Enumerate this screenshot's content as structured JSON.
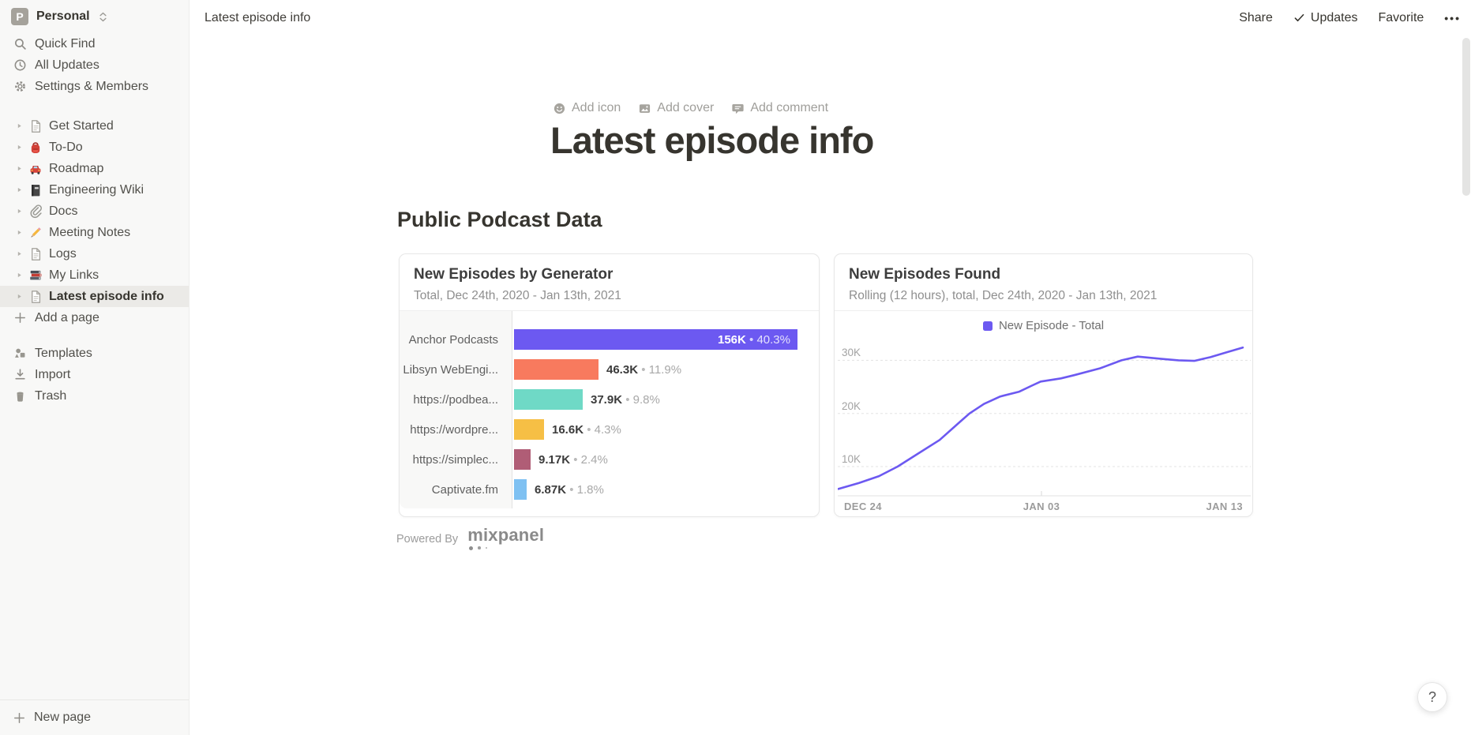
{
  "workspace": {
    "initial": "P",
    "name": "Personal"
  },
  "sidebar": {
    "top_items": [
      {
        "label": "Quick Find",
        "icon": "search-icon"
      },
      {
        "label": "All Updates",
        "icon": "clock-icon"
      },
      {
        "label": "Settings & Members",
        "icon": "gear-icon"
      }
    ],
    "pages": [
      {
        "label": "Get Started",
        "icon": "page-icon",
        "selected": false
      },
      {
        "label": "To-Do",
        "icon": "backpack-icon",
        "selected": false
      },
      {
        "label": "Roadmap",
        "icon": "car-icon",
        "selected": false
      },
      {
        "label": "Engineering Wiki",
        "icon": "notebook-icon",
        "selected": false
      },
      {
        "label": "Docs",
        "icon": "paperclip-icon",
        "selected": false
      },
      {
        "label": "Meeting Notes",
        "icon": "pencil-icon",
        "selected": false
      },
      {
        "label": "Logs",
        "icon": "page-icon",
        "selected": false
      },
      {
        "label": "My Links",
        "icon": "books-icon",
        "selected": false
      },
      {
        "label": "Latest episode info",
        "icon": "page-icon",
        "selected": true
      }
    ],
    "add_page_label": "Add a page",
    "bottom_items": [
      {
        "label": "Templates",
        "icon": "templates-icon"
      },
      {
        "label": "Import",
        "icon": "import-icon"
      },
      {
        "label": "Trash",
        "icon": "trash-icon"
      }
    ],
    "new_page_label": "New page"
  },
  "topbar": {
    "breadcrumb": "Latest episode info",
    "share_label": "Share",
    "updates_label": "Updates",
    "favorite_label": "Favorite",
    "more_label": "•••"
  },
  "page": {
    "controls": [
      {
        "label": "Add icon",
        "icon": "smiley-icon"
      },
      {
        "label": "Add cover",
        "icon": "image-icon"
      },
      {
        "label": "Add comment",
        "icon": "comment-icon"
      }
    ],
    "title": "Latest episode info",
    "section_heading": "Public Podcast Data",
    "powered_by_label": "Powered By",
    "powered_by_brand": "mixpanel"
  },
  "help_label": "?",
  "accent_color": "#6c59f1",
  "chart_data": [
    {
      "type": "bar",
      "orientation": "horizontal",
      "title": "New Episodes by Generator",
      "subtitle": "Total, Dec 24th, 2020 - Jan 13th, 2021",
      "categories": [
        "Anchor Podcasts",
        "Libsyn WebEngi...",
        "https://podbea...",
        "https://wordpre...",
        "https://simplec...",
        "Captivate.fm"
      ],
      "values": [
        156000,
        46300,
        37900,
        16600,
        9170,
        6870
      ],
      "value_labels": [
        "156K",
        "46.3K",
        "37.9K",
        "16.6K",
        "9.17K",
        "6.87K"
      ],
      "percent_labels": [
        "40.3%",
        "11.9%",
        "9.8%",
        "4.3%",
        "2.4%",
        "1.8%"
      ],
      "bar_colors": [
        "#6c59f1",
        "#f87a5e",
        "#6fd9c6",
        "#f6bf45",
        "#b05d76",
        "#7fc1f2"
      ],
      "scale_max": 156000,
      "grid": false,
      "legend_position": "none"
    },
    {
      "type": "line",
      "title": "New Episodes Found",
      "subtitle": "Rolling (12 hours), total, Dec 24th, 2020 - Jan 13th, 2021",
      "legend": [
        {
          "label": "New Episode - Total",
          "color": "#6c59f1"
        }
      ],
      "legend_position": "top-center",
      "line_color": "#6c59f1",
      "x_ticks": [
        "DEC 24",
        "JAN 03",
        "JAN 13"
      ],
      "y_gridlines": [
        10000,
        20000,
        30000
      ],
      "y_tick_labels": [
        "10K",
        "20K",
        "30K"
      ],
      "ylim_visible": [
        4500,
        33500
      ],
      "grid": "dashed-horizontal",
      "points": [
        [
          0,
          5800
        ],
        [
          0.05,
          6900
        ],
        [
          0.1,
          8200
        ],
        [
          0.146,
          10000
        ],
        [
          0.2,
          12600
        ],
        [
          0.25,
          15000
        ],
        [
          0.3,
          18400
        ],
        [
          0.324,
          20000
        ],
        [
          0.36,
          21800
        ],
        [
          0.4,
          23200
        ],
        [
          0.447,
          24100
        ],
        [
          0.48,
          25300
        ],
        [
          0.5,
          26000
        ],
        [
          0.55,
          26600
        ],
        [
          0.583,
          27200
        ],
        [
          0.647,
          28500
        ],
        [
          0.7,
          30000
        ],
        [
          0.74,
          30700
        ],
        [
          0.796,
          30300
        ],
        [
          0.841,
          30000
        ],
        [
          0.88,
          29900
        ],
        [
          0.92,
          30600
        ],
        [
          0.96,
          31500
        ],
        [
          1,
          32400
        ]
      ]
    }
  ]
}
